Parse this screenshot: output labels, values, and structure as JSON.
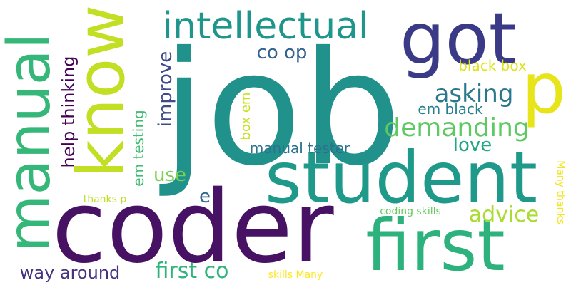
{
  "words": [
    {
      "id": "job",
      "text": "job",
      "color": "#21918c"
    },
    {
      "id": "coder",
      "text": "coder",
      "color": "#471164"
    },
    {
      "id": "student",
      "text": "student",
      "color": "#1f9a8a"
    },
    {
      "id": "first-large",
      "text": "first",
      "color": "#2db27d"
    },
    {
      "id": "got",
      "text": "got",
      "color": "#3b3a86"
    },
    {
      "id": "know",
      "text": "know",
      "color": "#c2df23"
    },
    {
      "id": "manual",
      "text": "manual",
      "color": "#35b779"
    },
    {
      "id": "intellectual",
      "text": "intellectual",
      "color": "#1f968b"
    },
    {
      "id": "p",
      "text": "p",
      "color": "#e7e419"
    },
    {
      "id": "demanding",
      "text": "demanding",
      "color": "#5ec962"
    },
    {
      "id": "asking",
      "text": "asking",
      "color": "#2a788e"
    },
    {
      "id": "advice",
      "text": "advice",
      "color": "#aadc32"
    },
    {
      "id": "first-co",
      "text": "first co",
      "color": "#2fb47c"
    },
    {
      "id": "way-around",
      "text": "way around",
      "color": "#46337e"
    },
    {
      "id": "co-op",
      "text": "co op",
      "color": "#33638d"
    },
    {
      "id": "love",
      "text": "love",
      "color": "#22a884"
    },
    {
      "id": "improve",
      "text": "improve",
      "color": "#3e4a89"
    },
    {
      "id": "help-thinking",
      "text": "help thinking",
      "color": "#440154"
    },
    {
      "id": "use",
      "text": "use",
      "color": "#7ad151"
    },
    {
      "id": "e",
      "text": "e",
      "color": "#31688e"
    },
    {
      "id": "em-testing",
      "text": "em testing",
      "color": "#3fbc73"
    },
    {
      "id": "box-em",
      "text": "box em",
      "color": "#c8e020"
    },
    {
      "id": "manual-tester",
      "text": "manual tester",
      "color": "#2c728e"
    },
    {
      "id": "em-black",
      "text": "em black",
      "color": "#277f8e"
    },
    {
      "id": "black-box",
      "text": "black box",
      "color": "#dde318"
    },
    {
      "id": "thanks-p",
      "text": "thanks p",
      "color": "#bddf26"
    },
    {
      "id": "coding-skills",
      "text": "coding skills",
      "color": "#65cb5e"
    },
    {
      "id": "skills-many",
      "text": "skills Many",
      "color": "#fde725"
    },
    {
      "id": "many-thanks",
      "text": "Many thanks",
      "color": "#f1e51d"
    }
  ]
}
